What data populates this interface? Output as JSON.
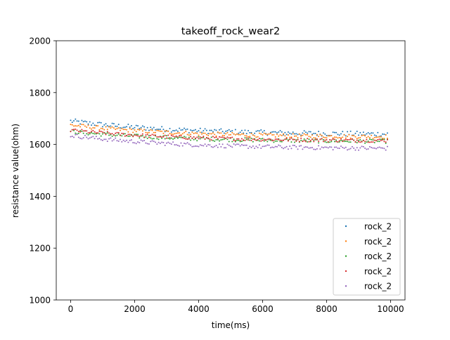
{
  "chart_data": {
    "type": "scatter",
    "title": "takeoff_rock_wear2",
    "xlabel": "time(ms)",
    "ylabel": "resistance value(ohm)",
    "xlim": [
      -450,
      10450
    ],
    "ylim": [
      1000,
      2000
    ],
    "xticks": [
      0,
      2000,
      4000,
      6000,
      8000,
      10000
    ],
    "yticks": [
      1000,
      1200,
      1400,
      1600,
      1800,
      2000
    ],
    "grid": false,
    "legend_position": "lower-right",
    "x_range": [
      0,
      9900
    ],
    "x_step": 50,
    "series": [
      {
        "name": "rock_2",
        "color": "#1f77b4",
        "start": 1690,
        "end": 1640,
        "spread": 10
      },
      {
        "name": "rock_2",
        "color": "#ff7f0e",
        "start": 1675,
        "end": 1630,
        "spread": 8
      },
      {
        "name": "rock_2",
        "color": "#2ca02c",
        "start": 1650,
        "end": 1612,
        "spread": 8
      },
      {
        "name": "rock_2",
        "color": "#d62728",
        "start": 1655,
        "end": 1615,
        "spread": 7
      },
      {
        "name": "rock_2",
        "color": "#9467bd",
        "start": 1635,
        "end": 1585,
        "spread": 8
      }
    ]
  }
}
